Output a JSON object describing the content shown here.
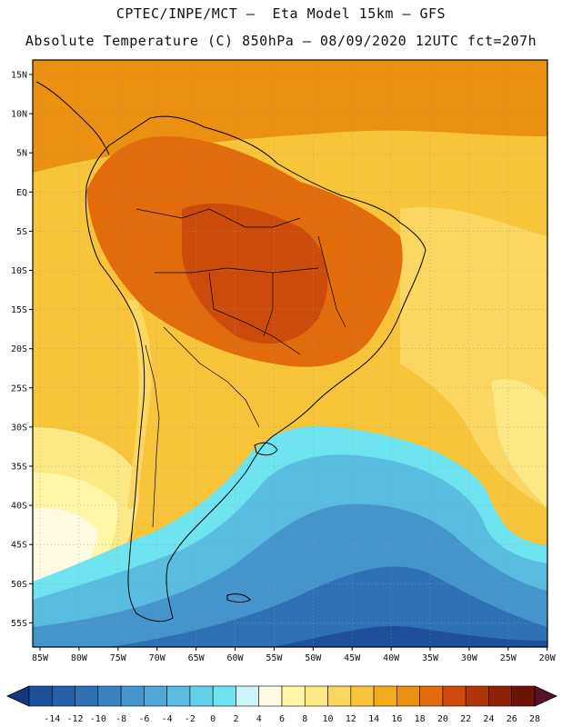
{
  "header": {
    "line1": "CPTEC/INPE/MCT –  Eta Model 15km – GFS",
    "line2": "Absolute Temperature (C) 850hPa – 08/09/2020 12UTC fct=207h"
  },
  "axes": {
    "lat_labels": [
      "15N",
      "10N",
      "5N",
      "EQ",
      "5S",
      "10S",
      "15S",
      "20S",
      "25S",
      "30S",
      "35S",
      "40S",
      "45S",
      "50S",
      "55S"
    ],
    "lon_labels": [
      "85W",
      "80W",
      "75W",
      "70W",
      "65W",
      "60W",
      "55W",
      "50W",
      "45W",
      "40W",
      "35W",
      "30W",
      "25W",
      "20W"
    ]
  },
  "colorbar": {
    "labels": [
      "-14",
      "-12",
      "-10",
      "-8",
      "-6",
      "-4",
      "-2",
      "0",
      "2",
      "4",
      "6",
      "8",
      "10",
      "12",
      "14",
      "16",
      "18",
      "20",
      "22",
      "24",
      "26",
      "28"
    ],
    "colors": [
      "#1d4f9a",
      "#2560a7",
      "#2e70b4",
      "#3a82c0",
      "#4595cc",
      "#4fa8d6",
      "#59bce0",
      "#63d0ea",
      "#6ee4f1",
      "#cdf3fb",
      "#fffbe3",
      "#fff6a8",
      "#fde886",
      "#fbd660",
      "#f7c43a",
      "#f1ac1c",
      "#eb9010",
      "#e26b0c",
      "#cc4a0a",
      "#b0360a",
      "#8f2109",
      "#6c1408"
    ]
  },
  "palette": {
    "ocean_cold_deep": "#1d4f9a",
    "ocean_cold": "#3a82c0",
    "ocean_mid": "#59bce0",
    "ocean_light": "#6ee4f1",
    "pale": "#fffbe3",
    "warm_light": "#fde886",
    "warm": "#f7c43a",
    "warm_orange": "#eb9010",
    "hot": "#e26b0c",
    "hottest": "#cc4a0a",
    "border": "#000000",
    "grid": "#9a9a9a"
  }
}
